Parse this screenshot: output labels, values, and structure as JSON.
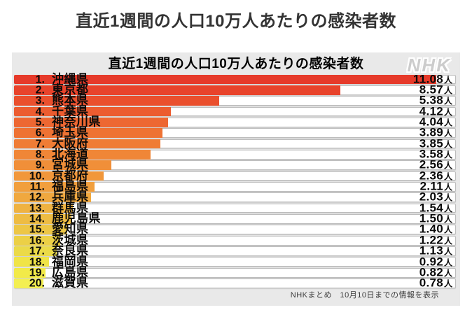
{
  "page": {
    "main_title": "直近1週間の人口10万人あたりの感染者数"
  },
  "chart": {
    "title": "直近1週間の人口10万人あたりの感染者数",
    "logo": "NHK",
    "footer_note": "NHKまとめ　10月10日までの情報を表示",
    "unit_suffix": "人",
    "panel_bg": "#e9e9e9",
    "track_bg": "#ffffff"
  },
  "chart_data": {
    "type": "bar",
    "orientation": "horizontal",
    "title": "直近1週間の人口10万人あたりの感染者数",
    "unit": "人",
    "axis_max": 11.6,
    "grid": false,
    "legend": false,
    "categories": [
      "沖縄県",
      "東京都",
      "熊本県",
      "千葉県",
      "神奈川県",
      "埼玉県",
      "大阪府",
      "北海道",
      "宮城県",
      "京都府",
      "福島県",
      "兵庫県",
      "群馬県",
      "鹿児島県",
      "愛知県",
      "茨城県",
      "奈良県",
      "福岡県",
      "広島県",
      "滋賀県"
    ],
    "values": [
      11.08,
      8.57,
      5.38,
      4.12,
      4.04,
      3.89,
      3.85,
      3.58,
      2.56,
      2.36,
      2.11,
      2.03,
      1.54,
      1.5,
      1.4,
      1.22,
      1.13,
      0.92,
      0.82,
      0.78
    ],
    "rows": [
      {
        "rank": "1.",
        "prefecture": "沖縄県",
        "value": 11.08,
        "display": "11.08",
        "unit": "人",
        "color": "#e63a2a"
      },
      {
        "rank": "2.",
        "prefecture": "東京都",
        "value": 8.57,
        "display": "8.57",
        "unit": "人",
        "color": "#e8432b"
      },
      {
        "rank": "3.",
        "prefecture": "熊本県",
        "value": 5.38,
        "display": "5.38",
        "unit": "人",
        "color": "#ea4f2d"
      },
      {
        "rank": "4.",
        "prefecture": "千葉県",
        "value": 4.12,
        "display": "4.12",
        "unit": "人",
        "color": "#ec5c30"
      },
      {
        "rank": "5.",
        "prefecture": "神奈川県",
        "value": 4.04,
        "display": "4.04",
        "unit": "人",
        "color": "#ed6732"
      },
      {
        "rank": "6.",
        "prefecture": "埼玉県",
        "value": 3.89,
        "display": "3.89",
        "unit": "人",
        "color": "#ee7233"
      },
      {
        "rank": "7.",
        "prefecture": "大阪府",
        "value": 3.85,
        "display": "3.85",
        "unit": "人",
        "color": "#ef7c35"
      },
      {
        "rank": "8.",
        "prefecture": "北海道",
        "value": 3.58,
        "display": "3.58",
        "unit": "人",
        "color": "#f08637"
      },
      {
        "rank": "9.",
        "prefecture": "宮城県",
        "value": 2.56,
        "display": "2.56",
        "unit": "人",
        "color": "#f08f39"
      },
      {
        "rank": "10.",
        "prefecture": "京都府",
        "value": 2.36,
        "display": "2.36",
        "unit": "人",
        "color": "#f1973b"
      },
      {
        "rank": "11.",
        "prefecture": "福島県",
        "value": 2.11,
        "display": "2.11",
        "unit": "人",
        "color": "#f19f3d"
      },
      {
        "rank": "12.",
        "prefecture": "兵庫県",
        "value": 2.03,
        "display": "2.03",
        "unit": "人",
        "color": "#f0a83f"
      },
      {
        "rank": "13.",
        "prefecture": "群馬県",
        "value": 1.54,
        "display": "1.54",
        "unit": "人",
        "color": "#efb241"
      },
      {
        "rank": "14.",
        "prefecture": "鹿児島県",
        "value": 1.5,
        "display": "1.50",
        "unit": "人",
        "color": "#eebc43"
      },
      {
        "rank": "15.",
        "prefecture": "愛知県",
        "value": 1.4,
        "display": "1.40",
        "unit": "人",
        "color": "#edc645"
      },
      {
        "rank": "16.",
        "prefecture": "茨城県",
        "value": 1.22,
        "display": "1.22",
        "unit": "人",
        "color": "#ecd046"
      },
      {
        "rank": "17.",
        "prefecture": "奈良県",
        "value": 1.13,
        "display": "1.13",
        "unit": "人",
        "color": "#ebda48"
      },
      {
        "rank": "18.",
        "prefecture": "福岡県",
        "value": 0.92,
        "display": "0.92",
        "unit": "人",
        "color": "#f0e447"
      },
      {
        "rank": "19.",
        "prefecture": "広島県",
        "value": 0.82,
        "display": "0.82",
        "unit": "人",
        "color": "#f2ea49"
      },
      {
        "rank": "20.",
        "prefecture": "滋賀県",
        "value": 0.78,
        "display": "0.78",
        "unit": "人",
        "color": "#f3ef52"
      }
    ]
  }
}
